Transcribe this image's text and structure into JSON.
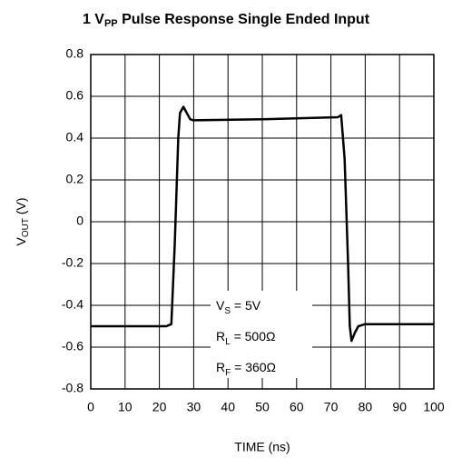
{
  "chart_data": {
    "type": "line",
    "title": [
      "1 V",
      "PP",
      " Pulse Response Single Ended Input"
    ],
    "xlabel": "TIME (ns)",
    "ylabel": [
      "V",
      "OUT",
      " (V)"
    ],
    "annotations": [
      [
        "V",
        "S",
        " = 5V"
      ],
      [
        "R",
        "L",
        " = 500Ω"
      ],
      [
        "R",
        "F",
        " = 360Ω"
      ]
    ],
    "x": [
      0,
      22,
      23.5,
      24.5,
      25.5,
      26,
      27,
      28,
      29,
      30,
      50,
      72,
      73,
      74,
      75,
      75.5,
      76,
      77,
      78,
      80,
      100
    ],
    "values": [
      -0.5,
      -0.5,
      -0.49,
      -0.1,
      0.4,
      0.52,
      0.55,
      0.52,
      0.49,
      0.485,
      0.49,
      0.5,
      0.51,
      0.3,
      -0.2,
      -0.5,
      -0.57,
      -0.53,
      -0.5,
      -0.49,
      -0.49
    ],
    "color": "#000000",
    "xlim": [
      0,
      100
    ],
    "xticks": [
      0,
      10,
      20,
      30,
      40,
      50,
      60,
      70,
      80,
      90,
      100
    ],
    "ylim": [
      -0.8,
      0.8
    ],
    "yticks": [
      -0.8,
      -0.6,
      -0.4,
      -0.2,
      0,
      0.2,
      0.4,
      0.6,
      0.8
    ],
    "grid": true
  }
}
